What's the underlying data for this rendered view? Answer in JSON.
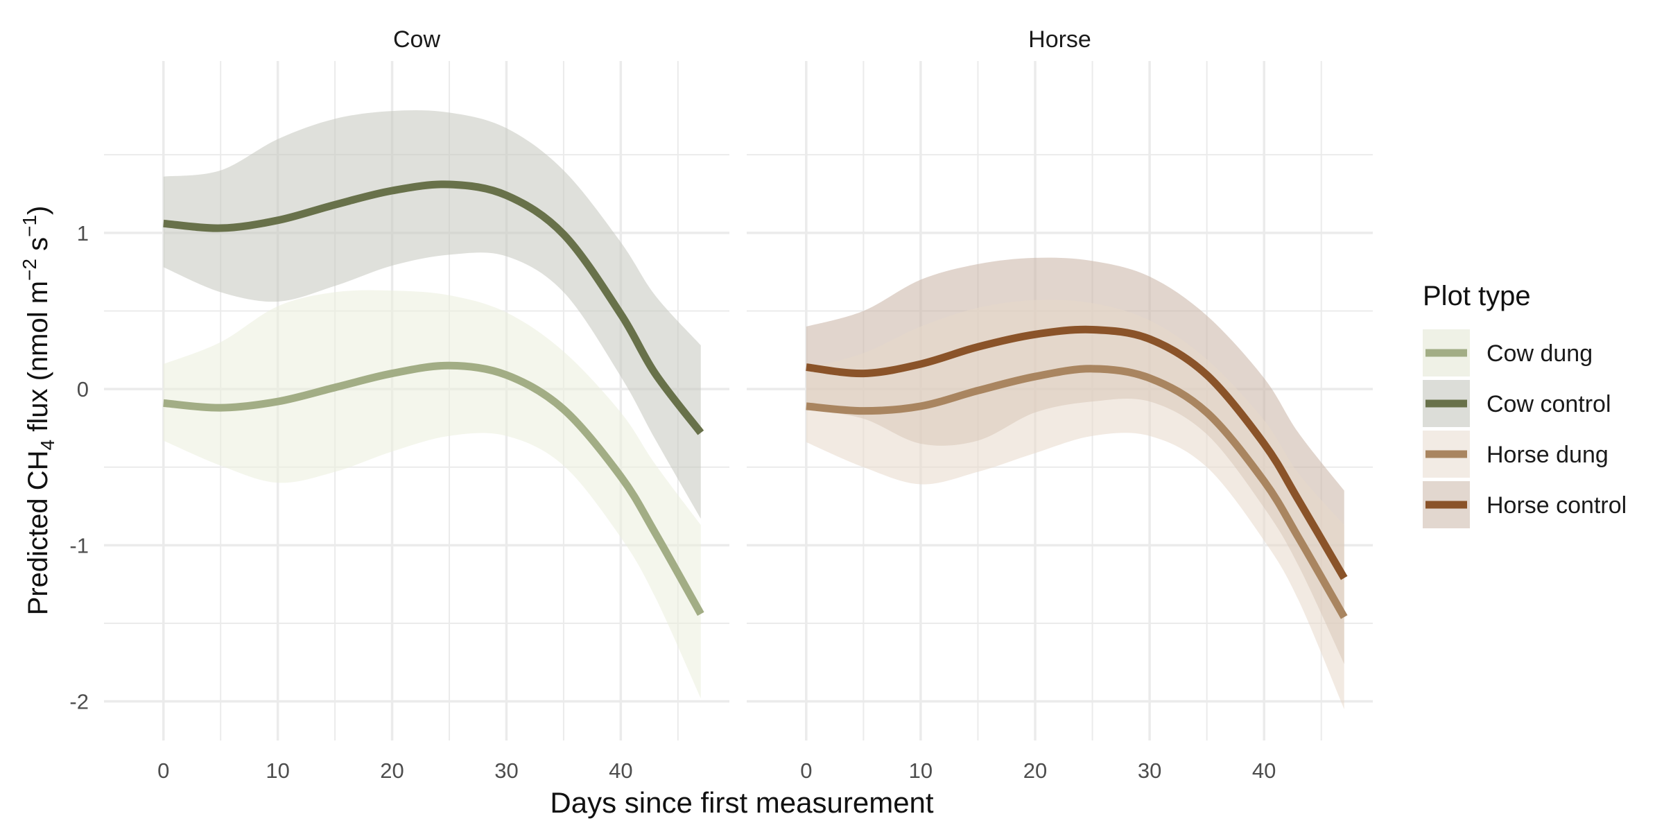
{
  "chart_data": {
    "type": "line",
    "xlabel": "Days since first measurement",
    "ylabel": {
      "prefix": "Predicted CH",
      "sub": "4",
      "mid": " flux (nmol m",
      "sup1": "−2",
      "gap": " s",
      "sup2": "−1",
      "suffix": ")"
    },
    "xlim": [
      -5.2,
      49.5
    ],
    "ylim": [
      -2.25,
      2.1
    ],
    "x_ticks": [
      0,
      10,
      20,
      30,
      40
    ],
    "y_ticks": [
      -2,
      -1,
      0,
      1
    ],
    "grid": true,
    "legend": {
      "title": "Plot type",
      "position": "right",
      "entries": [
        {
          "key": "cow_dung",
          "label": "Cow dung"
        },
        {
          "key": "cow_control",
          "label": "Cow control"
        },
        {
          "key": "horse_dung",
          "label": "Horse dung"
        },
        {
          "key": "horse_control",
          "label": "Horse control"
        }
      ]
    },
    "colors": {
      "cow_dung": {
        "line": "#a2ad85",
        "fill": "#ebeedd",
        "legend_bg": "#eff1e6"
      },
      "cow_control": {
        "line": "#68714a",
        "fill": "#c4c6bd",
        "legend_bg": "#dcddd8"
      },
      "horse_dung": {
        "line": "#a98560",
        "fill": "#e8d9ca",
        "legend_bg": "#f2ebe4"
      },
      "horse_control": {
        "line": "#8a5329",
        "fill": "#c9b3a4",
        "legend_bg": "#e2d7cf"
      }
    },
    "panels": [
      {
        "title": "Cow",
        "series": [
          {
            "key": "cow_control",
            "x": [
              0,
              5,
              10,
              15,
              20,
              25,
              30,
              35,
              40,
              43,
              47
            ],
            "y": [
              1.06,
              1.03,
              1.08,
              1.18,
              1.27,
              1.31,
              1.24,
              0.99,
              0.48,
              0.1,
              -0.28
            ],
            "lower": [
              0.78,
              0.62,
              0.56,
              0.66,
              0.79,
              0.86,
              0.85,
              0.62,
              0.08,
              -0.32,
              -0.83
            ],
            "upper": [
              1.36,
              1.4,
              1.6,
              1.73,
              1.78,
              1.77,
              1.67,
              1.4,
              0.94,
              0.6,
              0.28
            ]
          },
          {
            "key": "cow_dung",
            "x": [
              0,
              5,
              10,
              15,
              20,
              25,
              30,
              35,
              40,
              43,
              47
            ],
            "y": [
              -0.09,
              -0.12,
              -0.08,
              0.01,
              0.1,
              0.15,
              0.09,
              -0.13,
              -0.56,
              -0.92,
              -1.44
            ],
            "lower": [
              -0.33,
              -0.49,
              -0.6,
              -0.53,
              -0.4,
              -0.3,
              -0.3,
              -0.49,
              -0.95,
              -1.33,
              -1.98
            ],
            "upper": [
              0.16,
              0.3,
              0.53,
              0.62,
              0.63,
              0.6,
              0.49,
              0.24,
              -0.15,
              -0.48,
              -0.87
            ]
          }
        ]
      },
      {
        "title": "Horse",
        "series": [
          {
            "key": "horse_control",
            "x": [
              0,
              5,
              10,
              15,
              20,
              25,
              30,
              35,
              40,
              43,
              47
            ],
            "y": [
              0.14,
              0.1,
              0.16,
              0.27,
              0.35,
              0.38,
              0.32,
              0.09,
              -0.35,
              -0.71,
              -1.21
            ],
            "lower": [
              -0.13,
              -0.19,
              -0.35,
              -0.33,
              -0.15,
              -0.08,
              -0.08,
              -0.29,
              -0.76,
              -1.13,
              -1.76
            ],
            "upper": [
              0.4,
              0.5,
              0.7,
              0.8,
              0.84,
              0.82,
              0.72,
              0.47,
              0.07,
              -0.28,
              -0.65
            ]
          },
          {
            "key": "horse_dung",
            "x": [
              0,
              5,
              10,
              15,
              20,
              25,
              30,
              35,
              40,
              43,
              47
            ],
            "y": [
              -0.11,
              -0.14,
              -0.11,
              -0.01,
              0.08,
              0.13,
              0.07,
              -0.15,
              -0.59,
              -0.95,
              -1.46
            ],
            "lower": [
              -0.34,
              -0.5,
              -0.61,
              -0.53,
              -0.41,
              -0.3,
              -0.3,
              -0.5,
              -0.97,
              -1.35,
              -2.05
            ],
            "upper": [
              0.13,
              0.23,
              0.4,
              0.52,
              0.57,
              0.55,
              0.44,
              0.19,
              -0.2,
              -0.54,
              -0.87
            ]
          }
        ]
      }
    ]
  }
}
